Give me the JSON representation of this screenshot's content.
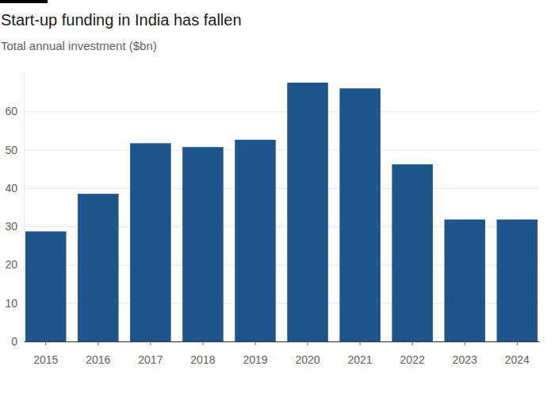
{
  "chart_data": {
    "type": "bar",
    "title": "Start-up funding in India has fallen",
    "subtitle": "Total annual investment ($bn)",
    "categories": [
      "2015",
      "2016",
      "2017",
      "2018",
      "2019",
      "2020",
      "2021",
      "2022",
      "2023",
      "2024"
    ],
    "values": [
      28.7,
      38.5,
      51.7,
      50.7,
      52.6,
      67.5,
      66.0,
      46.2,
      31.8,
      31.8
    ],
    "color": "#1e558c",
    "ylim": [
      0,
      70
    ],
    "yticks": [
      0,
      10,
      20,
      30,
      40,
      50,
      60
    ],
    "grid": true
  }
}
